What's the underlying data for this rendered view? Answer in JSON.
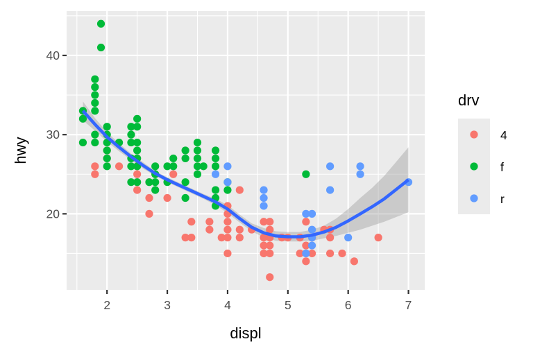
{
  "chart_data": {
    "type": "scatter",
    "title": "",
    "xlabel": "displ",
    "ylabel": "hwy",
    "xlim": [
      1.33,
      7.27
    ],
    "ylim": [
      10.4,
      45.6
    ],
    "xticks": [
      2,
      3,
      4,
      5,
      6,
      7
    ],
    "yticks": [
      20,
      30,
      40
    ],
    "grid": true,
    "legend": {
      "title": "drv",
      "position": "right",
      "entries": [
        {
          "label": "4",
          "color": "#F8766D"
        },
        {
          "label": "f",
          "color": "#00BA38"
        },
        {
          "label": "r",
          "color": "#619CFF"
        }
      ]
    },
    "series": [
      {
        "name": "4",
        "color": "#F8766D",
        "points": [
          [
            1.8,
            26
          ],
          [
            1.8,
            25
          ],
          [
            2.0,
            28
          ],
          [
            2.0,
            27
          ],
          [
            2.2,
            26
          ],
          [
            2.5,
            27
          ],
          [
            2.5,
            25
          ],
          [
            2.5,
            24
          ],
          [
            2.5,
            23
          ],
          [
            2.5,
            26
          ],
          [
            2.7,
            22
          ],
          [
            2.7,
            20
          ],
          [
            2.7,
            24
          ],
          [
            2.8,
            25
          ],
          [
            3.0,
            22
          ],
          [
            3.1,
            25
          ],
          [
            3.3,
            17
          ],
          [
            3.4,
            19
          ],
          [
            3.4,
            17
          ],
          [
            3.7,
            18
          ],
          [
            3.7,
            19
          ],
          [
            3.9,
            17
          ],
          [
            4.0,
            19
          ],
          [
            4.0,
            18
          ],
          [
            4.0,
            20
          ],
          [
            4.0,
            17
          ],
          [
            4.0,
            15
          ],
          [
            4.0,
            21
          ],
          [
            4.2,
            23
          ],
          [
            4.2,
            18
          ],
          [
            4.2,
            17
          ],
          [
            4.4,
            18
          ],
          [
            4.6,
            17
          ],
          [
            4.6,
            16
          ],
          [
            4.6,
            19
          ],
          [
            4.6,
            15
          ],
          [
            4.7,
            17
          ],
          [
            4.7,
            19
          ],
          [
            4.7,
            18
          ],
          [
            4.7,
            16
          ],
          [
            4.7,
            15
          ],
          [
            4.7,
            12
          ],
          [
            4.9,
            17
          ],
          [
            5.2,
            17
          ],
          [
            5.3,
            19
          ],
          [
            5.3,
            16
          ],
          [
            5.3,
            15
          ],
          [
            5.3,
            14
          ],
          [
            5.4,
            17
          ],
          [
            5.4,
            15
          ],
          [
            5.7,
            17
          ],
          [
            5.7,
            18
          ],
          [
            5.7,
            15
          ],
          [
            5.9,
            15
          ],
          [
            6.1,
            14
          ],
          [
            6.5,
            17
          ],
          [
            5.6,
            18
          ],
          [
            5.0,
            17
          ],
          [
            5.2,
            15
          ]
        ]
      },
      {
        "name": "f",
        "color": "#00BA38",
        "points": [
          [
            1.6,
            33
          ],
          [
            1.6,
            32
          ],
          [
            1.6,
            29
          ],
          [
            1.8,
            37
          ],
          [
            1.8,
            36
          ],
          [
            1.8,
            35
          ],
          [
            1.8,
            34
          ],
          [
            1.8,
            33
          ],
          [
            1.8,
            30
          ],
          [
            1.8,
            29
          ],
          [
            1.9,
            44
          ],
          [
            1.9,
            41
          ],
          [
            2.0,
            31
          ],
          [
            2.0,
            30
          ],
          [
            2.0,
            29
          ],
          [
            2.0,
            28
          ],
          [
            2.0,
            27
          ],
          [
            2.0,
            26
          ],
          [
            2.2,
            29
          ],
          [
            2.4,
            31
          ],
          [
            2.4,
            30
          ],
          [
            2.4,
            29
          ],
          [
            2.4,
            27
          ],
          [
            2.4,
            26
          ],
          [
            2.4,
            24
          ],
          [
            2.5,
            32
          ],
          [
            2.5,
            31
          ],
          [
            2.5,
            29
          ],
          [
            2.5,
            28
          ],
          [
            2.5,
            27
          ],
          [
            2.5,
            26
          ],
          [
            2.5,
            24
          ],
          [
            2.7,
            24
          ],
          [
            2.8,
            26
          ],
          [
            2.8,
            25
          ],
          [
            2.8,
            24
          ],
          [
            2.8,
            23
          ],
          [
            3.0,
            26
          ],
          [
            3.0,
            24
          ],
          [
            3.1,
            27
          ],
          [
            3.1,
            26
          ],
          [
            3.3,
            28
          ],
          [
            3.3,
            27
          ],
          [
            3.3,
            24
          ],
          [
            3.3,
            22
          ],
          [
            3.5,
            29
          ],
          [
            3.5,
            28
          ],
          [
            3.5,
            27
          ],
          [
            3.5,
            26
          ],
          [
            3.5,
            25
          ],
          [
            3.6,
            26
          ],
          [
            3.8,
            28
          ],
          [
            3.8,
            27
          ],
          [
            3.8,
            26
          ],
          [
            3.8,
            23
          ],
          [
            3.8,
            22
          ],
          [
            3.8,
            21
          ],
          [
            4.0,
            24
          ],
          [
            4.0,
            23
          ],
          [
            5.3,
            25
          ]
        ]
      },
      {
        "name": "r",
        "color": "#619CFF",
        "points": [
          [
            3.8,
            25
          ],
          [
            4.0,
            26
          ],
          [
            4.0,
            24
          ],
          [
            4.6,
            23
          ],
          [
            4.6,
            22
          ],
          [
            4.6,
            21
          ],
          [
            5.3,
            20
          ],
          [
            5.4,
            20
          ],
          [
            5.4,
            18
          ],
          [
            5.4,
            17
          ],
          [
            5.4,
            16
          ],
          [
            5.3,
            15
          ],
          [
            5.7,
            26
          ],
          [
            5.7,
            23
          ],
          [
            6.0,
            17
          ],
          [
            6.2,
            26
          ],
          [
            6.2,
            25
          ],
          [
            7.0,
            24
          ]
        ]
      }
    ],
    "smooth": {
      "method": "loess",
      "color": "#3366FF",
      "band_color": "#999999",
      "x": [
        1.6,
        1.8,
        2.0,
        2.2,
        2.4,
        2.6,
        2.8,
        3.0,
        3.2,
        3.4,
        3.6,
        3.8,
        4.0,
        4.2,
        4.4,
        4.6,
        4.8,
        5.0,
        5.2,
        5.4,
        5.6,
        5.8,
        6.0,
        6.2,
        6.4,
        6.6,
        6.8,
        7.0
      ],
      "y": [
        33.0,
        31.3,
        29.7,
        28.4,
        27.2,
        26.1,
        25.1,
        24.3,
        23.6,
        22.9,
        22.2,
        21.5,
        20.6,
        19.4,
        18.3,
        17.6,
        17.2,
        17.1,
        17.1,
        17.3,
        17.7,
        18.3,
        19.1,
        20.0,
        20.9,
        21.9,
        23.1,
        24.3
      ],
      "lower": [
        31.8,
        30.5,
        29.1,
        27.9,
        26.8,
        25.7,
        24.8,
        24.0,
        23.3,
        22.6,
        21.9,
        21.1,
        20.1,
        18.9,
        17.8,
        17.0,
        16.6,
        16.5,
        16.5,
        16.6,
        16.9,
        17.2,
        17.6,
        18.0,
        18.5,
        19.0,
        19.6,
        20.2
      ],
      "upper": [
        34.2,
        32.1,
        30.3,
        28.9,
        27.6,
        26.5,
        25.4,
        24.6,
        23.9,
        23.2,
        22.5,
        21.9,
        21.1,
        19.9,
        18.8,
        18.2,
        17.8,
        17.7,
        17.7,
        18.0,
        18.5,
        19.4,
        20.6,
        22.0,
        23.3,
        24.8,
        26.6,
        28.4
      ]
    }
  }
}
